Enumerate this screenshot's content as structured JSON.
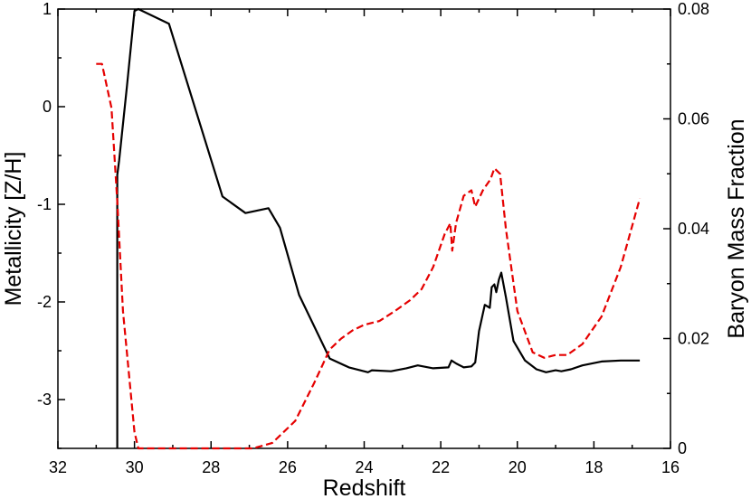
{
  "chart_data": {
    "type": "line",
    "title": "",
    "xlabel": "Redshift",
    "ylabel": "Metallicity [Z/H]",
    "y2label": "Baryon Mass Fraction",
    "xlim": [
      32,
      16
    ],
    "ylim": [
      -3.5,
      1
    ],
    "y2lim": [
      0,
      0.08
    ],
    "xticks": [
      "32",
      "30",
      "28",
      "26",
      "24",
      "22",
      "20",
      "18",
      "16"
    ],
    "yticks": [
      "-3",
      "-2",
      "-1",
      "0",
      "1"
    ],
    "y2ticks": [
      "0",
      "0.02",
      "0.04",
      "0.06",
      "0.08"
    ],
    "grid": false,
    "legend": "none",
    "series": [
      {
        "axis": "left",
        "color": "#000000",
        "style": "solid",
        "x": [
          30.45,
          30.45,
          30.4,
          30.2,
          30.0,
          29.9,
          29.1,
          27.7,
          27.1,
          26.5,
          26.2,
          25.7,
          24.9,
          24.4,
          23.9,
          23.8,
          23.3,
          22.9,
          22.6,
          22.2,
          21.8,
          21.72,
          21.6,
          21.4,
          21.2,
          21.1,
          21.0,
          20.85,
          20.72,
          20.67,
          20.6,
          20.55,
          20.48,
          20.42,
          20.3,
          20.1,
          19.8,
          19.5,
          19.25,
          19.0,
          18.85,
          18.6,
          18.3,
          17.8,
          17.3,
          16.8
        ],
        "y": [
          -3.5,
          -0.7,
          -0.55,
          0.2,
          0.98,
          1.0,
          0.85,
          -0.92,
          -1.09,
          -1.04,
          -1.24,
          -1.93,
          -2.58,
          -2.67,
          -2.72,
          -2.7,
          -2.71,
          -2.68,
          -2.65,
          -2.68,
          -2.67,
          -2.6,
          -2.63,
          -2.67,
          -2.66,
          -2.62,
          -2.3,
          -2.03,
          -2.06,
          -1.85,
          -1.82,
          -1.9,
          -1.77,
          -1.7,
          -1.95,
          -2.4,
          -2.6,
          -2.69,
          -2.72,
          -2.7,
          -2.71,
          -2.69,
          -2.65,
          -2.61,
          -2.6,
          -2.6
        ]
      },
      {
        "axis": "right",
        "color": "#e50000",
        "style": "dashed",
        "x": [
          31.0,
          30.85,
          30.6,
          30.45,
          30.3,
          30.0,
          29.9,
          26.9,
          26.4,
          25.8,
          25.3,
          24.9,
          24.6,
          24.3,
          24.0,
          23.6,
          23.2,
          22.8,
          22.5,
          22.2,
          21.9,
          21.75,
          21.7,
          21.6,
          21.4,
          21.2,
          21.1,
          20.9,
          20.7,
          20.6,
          20.45,
          20.3,
          20.0,
          19.6,
          19.3,
          19.0,
          18.7,
          18.3,
          17.8,
          17.3,
          16.8
        ],
        "y": [
          0.07,
          0.07,
          0.062,
          0.045,
          0.025,
          0.003,
          0.0,
          0.0,
          0.001,
          0.005,
          0.012,
          0.018,
          0.02,
          0.0215,
          0.0225,
          0.0232,
          0.025,
          0.027,
          0.029,
          0.033,
          0.039,
          0.041,
          0.036,
          0.041,
          0.046,
          0.047,
          0.044,
          0.047,
          0.049,
          0.051,
          0.05,
          0.04,
          0.025,
          0.0175,
          0.0165,
          0.017,
          0.017,
          0.019,
          0.024,
          0.033,
          0.0455
        ]
      }
    ]
  }
}
